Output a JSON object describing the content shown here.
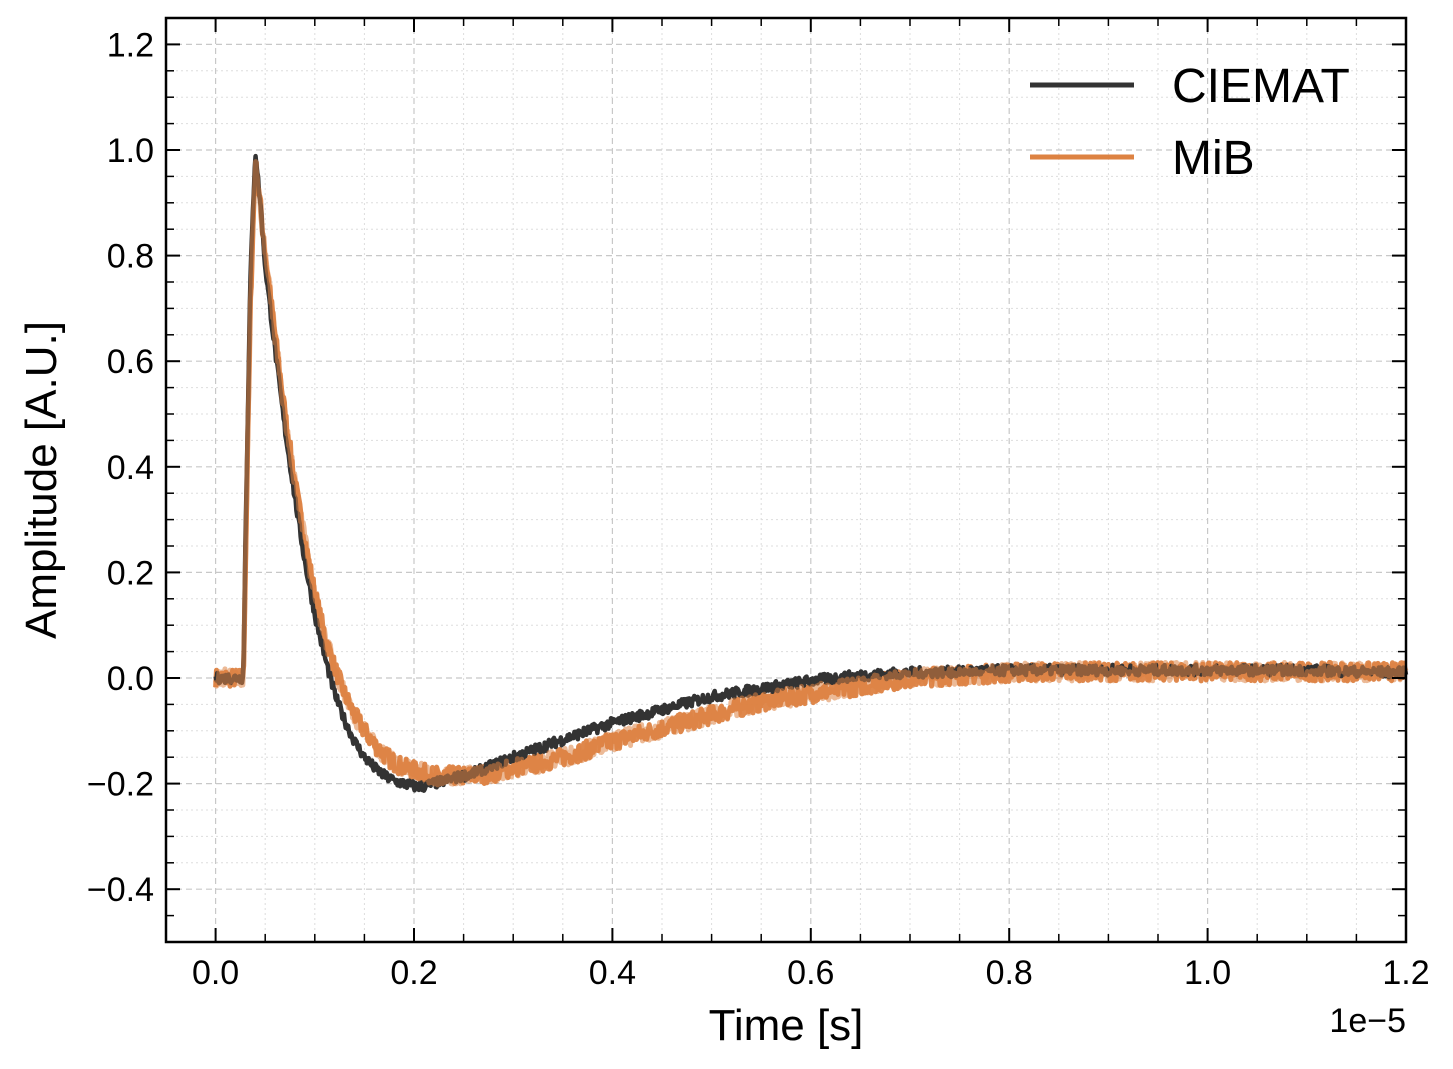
{
  "chart_data": {
    "type": "line",
    "title": "",
    "xlabel": "Time [s]",
    "ylabel": "Amplitude [A.U.]",
    "x_offset_label": "1e−5",
    "x_unit_scale": 1e-05,
    "xlim": [
      -0.05,
      1.2
    ],
    "ylim": [
      -0.5,
      1.25
    ],
    "xticks": [
      0.0,
      0.2,
      0.4,
      0.6,
      0.8,
      1.0,
      1.2
    ],
    "xtick_labels": [
      "0.0",
      "0.2",
      "0.4",
      "0.6",
      "0.8",
      "1.0",
      "1.2"
    ],
    "yticks": [
      -0.4,
      -0.2,
      0.0,
      0.2,
      0.4,
      0.6,
      0.8,
      1.0,
      1.2
    ],
    "ytick_labels": [
      "−0.4",
      "−0.2",
      "0.0",
      "0.2",
      "0.4",
      "0.6",
      "0.8",
      "1.0",
      "1.2"
    ],
    "grid": true,
    "minor_grid": true,
    "legend_position": "top-right",
    "series": [
      {
        "name": "CIEMAT",
        "color": "#333333",
        "x": [
          0.0,
          0.02,
          0.028,
          0.03,
          0.035,
          0.04,
          0.045,
          0.05,
          0.06,
          0.07,
          0.08,
          0.09,
          0.1,
          0.11,
          0.12,
          0.13,
          0.14,
          0.15,
          0.16,
          0.17,
          0.18,
          0.19,
          0.2,
          0.21,
          0.22,
          0.23,
          0.24,
          0.26,
          0.28,
          0.3,
          0.33,
          0.36,
          0.4,
          0.45,
          0.5,
          0.55,
          0.6,
          0.65,
          0.7,
          0.75,
          0.8,
          0.85,
          0.9,
          0.95,
          1.0,
          1.05,
          1.1,
          1.15,
          1.2
        ],
        "y": [
          0.0,
          0.0,
          0.0,
          0.25,
          0.75,
          1.0,
          0.9,
          0.78,
          0.62,
          0.47,
          0.34,
          0.22,
          0.12,
          0.04,
          -0.03,
          -0.08,
          -0.12,
          -0.15,
          -0.17,
          -0.185,
          -0.195,
          -0.2,
          -0.205,
          -0.205,
          -0.2,
          -0.195,
          -0.19,
          -0.18,
          -0.165,
          -0.15,
          -0.13,
          -0.11,
          -0.085,
          -0.06,
          -0.035,
          -0.02,
          -0.005,
          0.005,
          0.01,
          0.012,
          0.015,
          0.015,
          0.015,
          0.015,
          0.015,
          0.015,
          0.015,
          0.012,
          0.01
        ]
      },
      {
        "name": "MiB",
        "color": "#dd8242",
        "x": [
          0.0,
          0.02,
          0.028,
          0.03,
          0.035,
          0.04,
          0.045,
          0.05,
          0.06,
          0.07,
          0.08,
          0.09,
          0.1,
          0.11,
          0.12,
          0.13,
          0.14,
          0.15,
          0.16,
          0.17,
          0.18,
          0.19,
          0.2,
          0.21,
          0.22,
          0.23,
          0.24,
          0.26,
          0.28,
          0.3,
          0.33,
          0.36,
          0.4,
          0.45,
          0.5,
          0.55,
          0.6,
          0.65,
          0.7,
          0.75,
          0.8,
          0.85,
          0.9,
          0.95,
          1.0,
          1.05,
          1.1,
          1.15,
          1.2
        ],
        "y": [
          0.0,
          0.0,
          0.0,
          0.2,
          0.7,
          0.98,
          0.9,
          0.8,
          0.65,
          0.5,
          0.37,
          0.26,
          0.16,
          0.08,
          0.02,
          -0.03,
          -0.07,
          -0.1,
          -0.125,
          -0.145,
          -0.16,
          -0.17,
          -0.175,
          -0.18,
          -0.185,
          -0.185,
          -0.185,
          -0.185,
          -0.18,
          -0.17,
          -0.16,
          -0.145,
          -0.12,
          -0.095,
          -0.07,
          -0.045,
          -0.03,
          -0.015,
          0.0,
          0.005,
          0.01,
          0.012,
          0.012,
          0.012,
          0.012,
          0.012,
          0.012,
          0.012,
          0.012
        ]
      }
    ]
  }
}
